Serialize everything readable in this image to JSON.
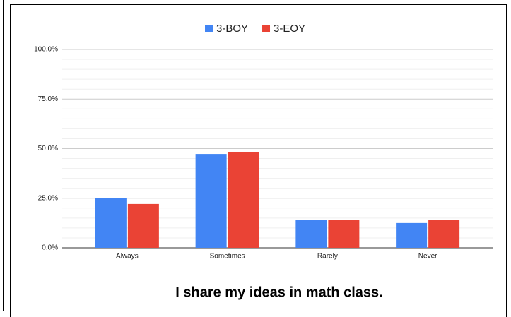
{
  "chart_data": {
    "type": "bar",
    "title": "I share my ideas in math class.",
    "categories": [
      "Always",
      "Sometimes",
      "Rarely",
      "Never"
    ],
    "series": [
      {
        "name": "3-BOY",
        "color": "#4285f4",
        "values": [
          25.0,
          47.3,
          14.2,
          12.5
        ]
      },
      {
        "name": "3-EOY",
        "color": "#ea4335",
        "values": [
          22.1,
          48.4,
          14.2,
          13.9
        ]
      }
    ],
    "ylim": [
      0,
      100
    ],
    "yticks": [
      {
        "value": 0,
        "label": "0.0%"
      },
      {
        "value": 25,
        "label": "25.0%"
      },
      {
        "value": 50,
        "label": "50.0%"
      },
      {
        "value": 75,
        "label": "75.0%"
      },
      {
        "value": 100,
        "label": "100.0%"
      }
    ],
    "minor_yticks": [
      5,
      10,
      15,
      20,
      30,
      35,
      40,
      45,
      55,
      60,
      65,
      70,
      80,
      85,
      90,
      95
    ],
    "grid": true,
    "legend": "top"
  }
}
